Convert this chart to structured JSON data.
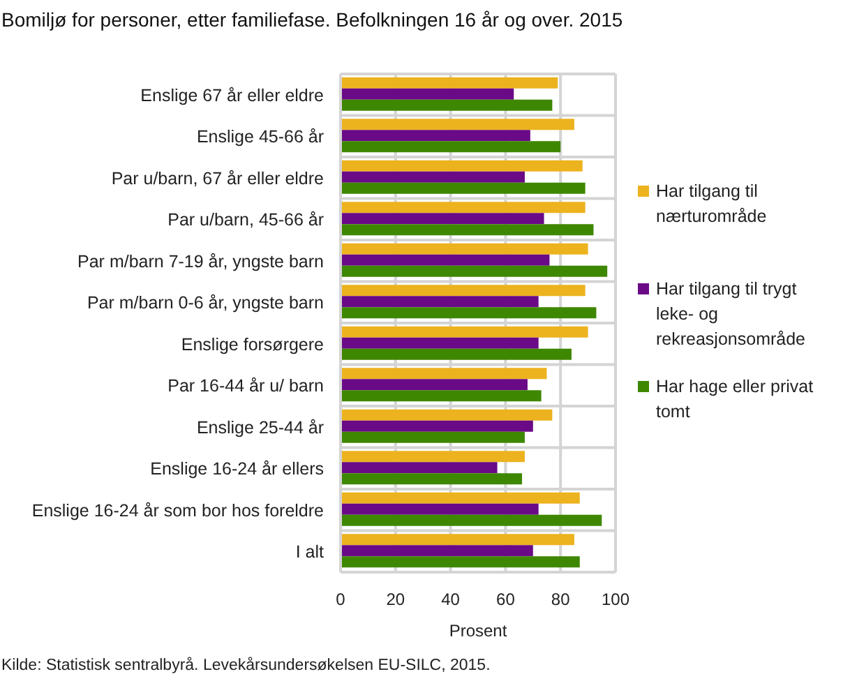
{
  "chart_data": {
    "type": "bar",
    "orientation": "horizontal",
    "title": "Bomiljø for personer, etter familiefase. Befolkningen 16 år og over. 2015",
    "xlabel": "Prosent",
    "categories": [
      "Enslige 67 år eller eldre",
      "Enslige 45-66 år",
      "Par u/barn, 67 år eller eldre",
      "Par u/barn, 45-66 år",
      "Par m/barn 7-19 år, yngste barn",
      "Par m/barn 0-6 år, yngste barn",
      "Enslige forsørgere",
      "Par 16-44 år u/ barn",
      "Enslige 25-44 år",
      "Enslige 16-24 år ellers",
      "Enslige 16-24 år som bor hos foreldre",
      "I alt"
    ],
    "series": [
      {
        "name": "Har tilgang til nærturområde",
        "color": "#ecb31e",
        "values": [
          79,
          85,
          88,
          89,
          90,
          89,
          90,
          75,
          77,
          67,
          87,
          85
        ]
      },
      {
        "name": "Har tilgang til trygt leke- og rekreasjonsområde",
        "color": "#6a0a87",
        "values": [
          63,
          69,
          67,
          74,
          76,
          72,
          72,
          68,
          70,
          57,
          72,
          70
        ]
      },
      {
        "name": "Har hage eller privat tomt",
        "color": "#3e8700",
        "values": [
          77,
          80,
          89,
          92,
          97,
          93,
          84,
          73,
          67,
          66,
          95,
          87
        ]
      }
    ],
    "xlim": [
      0,
      100
    ],
    "xticks": [
      0,
      20,
      40,
      60,
      80,
      100
    ],
    "grid": true,
    "legend": "right",
    "annotations": [
      "Kilde: Statistisk sentralbyrå. Levekårsundersøkelsen EU-SILC, 2015."
    ]
  }
}
